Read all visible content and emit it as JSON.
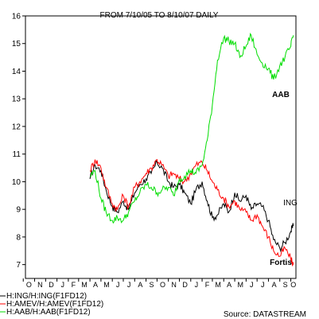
{
  "chart_data": {
    "type": "line",
    "title": "FROM 7/10/05 TO 8/10/07 DAILY",
    "source": "Source: DATASTREAM",
    "xlabel": "",
    "ylabel": "",
    "ylim": [
      6.5,
      16
    ],
    "yticks": [
      7,
      8,
      9,
      10,
      11,
      12,
      13,
      14,
      15,
      16
    ],
    "x_month_labels": [
      "O",
      "N",
      "D",
      "J",
      "F",
      "M",
      "A",
      "M",
      "J",
      "J",
      "A",
      "S",
      "O",
      "N",
      "D",
      "J",
      "F",
      "M",
      "A",
      "M",
      "J",
      "J",
      "A",
      "S",
      "O"
    ],
    "x_dates": [
      "2005-10",
      "2005-11",
      "2005-12",
      "2006-01",
      "2006-02",
      "2006-03",
      "2006-04",
      "2006-05",
      "2006-06",
      "2006-07",
      "2006-08",
      "2006-09",
      "2006-10",
      "2006-11",
      "2006-12",
      "2007-01",
      "2007-02",
      "2007-03",
      "2007-04",
      "2007-05",
      "2007-06",
      "2007-07",
      "2007-08",
      "2007-09",
      "2007-10"
    ],
    "grid": false,
    "legend_position": "bottom-left",
    "annotations": [
      {
        "text": "AAB",
        "series": "H:AAB/H:AAB(F1FD12)"
      },
      {
        "text": "ING",
        "series": "H:ING/H:ING(F1FD12)"
      },
      {
        "text": "Fortis",
        "series": "H:AMEV/H:AMEV(F1FD12)"
      }
    ],
    "series": [
      {
        "name": "H:ING/H:ING(F1FD12)",
        "color": "#000000",
        "x": [
          "2006-04-01",
          "2006-04-15",
          "2006-05-01",
          "2006-05-15",
          "2006-06-01",
          "2006-06-15",
          "2006-07-01",
          "2006-07-15",
          "2006-08-01",
          "2006-08-15",
          "2006-09-01",
          "2006-09-15",
          "2006-10-01",
          "2006-10-15",
          "2006-11-01",
          "2006-11-15",
          "2006-12-01",
          "2006-12-15",
          "2007-01-01",
          "2007-01-15",
          "2007-02-01",
          "2007-02-15",
          "2007-03-01",
          "2007-03-15",
          "2007-04-01",
          "2007-04-15",
          "2007-05-01",
          "2007-05-15",
          "2007-06-01",
          "2007-06-15",
          "2007-07-01",
          "2007-07-15",
          "2007-08-01",
          "2007-08-15",
          "2007-09-01",
          "2007-09-15",
          "2007-10-01",
          "2007-10-08"
        ],
        "values": [
          10.1,
          10.6,
          10.4,
          9.7,
          9.1,
          8.9,
          9.3,
          9.0,
          9.6,
          9.9,
          10.1,
          10.3,
          10.7,
          10.5,
          10.0,
          9.8,
          9.9,
          9.6,
          9.2,
          9.7,
          10.0,
          9.3,
          8.7,
          8.8,
          9.2,
          8.9,
          9.6,
          9.3,
          9.5,
          9.0,
          9.2,
          9.1,
          8.6,
          7.9,
          7.6,
          7.8,
          8.2,
          8.4
        ]
      },
      {
        "name": "H:AMEV/H:AMEV(F1FD12)",
        "color": "#ff0000",
        "x": [
          "2006-04-01",
          "2006-04-15",
          "2006-05-01",
          "2006-05-15",
          "2006-06-01",
          "2006-06-15",
          "2006-07-01",
          "2006-07-15",
          "2006-08-01",
          "2006-08-15",
          "2006-09-01",
          "2006-09-15",
          "2006-10-01",
          "2006-10-15",
          "2006-11-01",
          "2006-11-15",
          "2006-12-01",
          "2006-12-15",
          "2007-01-01",
          "2007-01-15",
          "2007-02-01",
          "2007-02-15",
          "2007-03-01",
          "2007-03-15",
          "2007-04-01",
          "2007-04-15",
          "2007-05-01",
          "2007-05-15",
          "2007-06-01",
          "2007-06-15",
          "2007-07-01",
          "2007-07-15",
          "2007-08-01",
          "2007-08-15",
          "2007-09-01",
          "2007-09-15",
          "2007-10-01",
          "2007-10-08"
        ],
        "values": [
          10.4,
          10.8,
          10.5,
          9.8,
          9.2,
          9.0,
          9.5,
          9.1,
          9.8,
          10.0,
          10.3,
          10.5,
          10.8,
          10.6,
          10.2,
          10.3,
          10.1,
          10.0,
          10.3,
          10.6,
          10.7,
          10.4,
          10.0,
          9.7,
          9.4,
          9.1,
          9.3,
          9.0,
          8.9,
          8.6,
          8.8,
          8.4,
          8.0,
          7.5,
          7.3,
          7.6,
          7.2,
          7.0
        ]
      },
      {
        "name": "H:AAB/H:AAB(F1FD12)",
        "color": "#00dd00",
        "x": [
          "2006-04-01",
          "2006-04-15",
          "2006-05-01",
          "2006-05-15",
          "2006-06-01",
          "2006-06-15",
          "2006-07-01",
          "2006-07-15",
          "2006-08-01",
          "2006-08-15",
          "2006-09-01",
          "2006-09-15",
          "2006-10-01",
          "2006-10-15",
          "2006-11-01",
          "2006-11-15",
          "2006-12-01",
          "2006-12-15",
          "2007-01-01",
          "2007-01-15",
          "2007-02-01",
          "2007-02-15",
          "2007-03-01",
          "2007-03-15",
          "2007-04-01",
          "2007-04-15",
          "2007-05-01",
          "2007-05-15",
          "2007-06-01",
          "2007-06-15",
          "2007-07-01",
          "2007-07-15",
          "2007-08-01",
          "2007-08-15",
          "2007-09-01",
          "2007-09-15",
          "2007-10-01",
          "2007-10-08"
        ],
        "values": [
          10.2,
          10.4,
          9.4,
          8.9,
          8.6,
          8.7,
          8.6,
          8.9,
          9.3,
          9.6,
          9.9,
          9.8,
          9.6,
          9.7,
          9.8,
          9.5,
          10.1,
          10.2,
          10.4,
          10.3,
          10.6,
          11.5,
          12.8,
          14.4,
          15.2,
          15.1,
          15.0,
          14.5,
          14.9,
          15.3,
          14.6,
          14.3,
          14.1,
          13.7,
          14.2,
          14.5,
          14.9,
          15.3
        ]
      }
    ]
  }
}
